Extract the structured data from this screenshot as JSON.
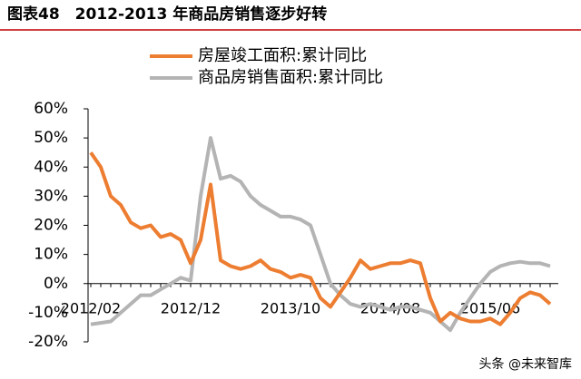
{
  "chart_data": {
    "type": "line",
    "title": "图表48　2012-2013 年商品房销售逐步好转",
    "categories": [
      "2012/02",
      null,
      null,
      null,
      null,
      null,
      null,
      null,
      null,
      null,
      "2012/12",
      null,
      null,
      null,
      null,
      null,
      null,
      null,
      null,
      null,
      "2013/10",
      null,
      null,
      null,
      null,
      null,
      null,
      null,
      null,
      null,
      "2014/08",
      null,
      null,
      null,
      null,
      null,
      null,
      null,
      null,
      null,
      "2015/06",
      null,
      null,
      null,
      null,
      null,
      null
    ],
    "series": [
      {
        "name": "房屋竣工面积:累计同比",
        "color": "#ed7d31",
        "values": [
          45,
          40,
          30,
          27,
          21,
          19,
          20,
          16,
          17,
          15,
          7,
          15,
          34,
          8,
          6,
          5,
          6,
          8,
          5,
          4,
          2,
          3,
          2,
          -5,
          -8,
          -3,
          2,
          8,
          5,
          6,
          7,
          7,
          8,
          7,
          -5,
          -13,
          -10,
          -12,
          -13,
          -13,
          -12,
          -14,
          -10,
          -5,
          -3,
          -4,
          -7
        ]
      },
      {
        "name": "商品房销售面积:累计同比",
        "color": "#b4b4b4",
        "values": [
          -14,
          -13.5,
          -13,
          -10,
          -7,
          -4,
          -4,
          -2,
          0,
          2,
          1,
          30,
          50,
          36,
          37,
          35,
          30,
          27,
          25,
          23,
          23,
          22,
          20,
          10,
          0,
          -4,
          -7,
          -8,
          -7,
          -8,
          -9,
          -8,
          -8,
          -9,
          -10,
          -13,
          -16,
          -10,
          -5,
          0,
          4,
          6,
          7,
          7.5,
          7,
          7,
          6
        ]
      }
    ],
    "ylim": [
      -20,
      60
    ],
    "yticks": [
      {
        "value": -20,
        "label": "-20%"
      },
      {
        "value": -10,
        "label": "-10%"
      },
      {
        "value": 0,
        "label": "0%"
      },
      {
        "value": 10,
        "label": "10%"
      },
      {
        "value": 20,
        "label": "20%"
      },
      {
        "value": 30,
        "label": "30%"
      },
      {
        "value": 40,
        "label": "40%"
      },
      {
        "value": 50,
        "label": "50%"
      },
      {
        "value": 60,
        "label": "60%"
      }
    ],
    "legend": "top"
  },
  "watermark": "头条 @未来智库"
}
